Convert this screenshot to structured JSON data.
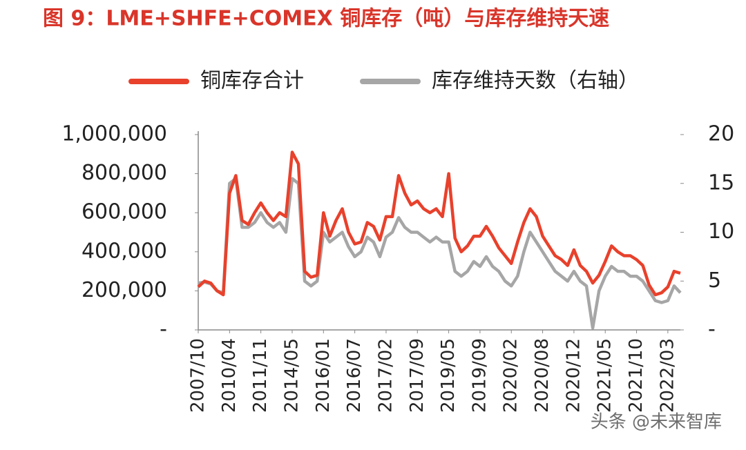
{
  "chart_data": {
    "type": "line",
    "title": "图 9：LME+SHFE+COMEX 铜库存（吨）与库存维持天速",
    "watermark": "头条 @未来智库",
    "categories": [
      "2007/10",
      null,
      null,
      null,
      null,
      "2010/04",
      null,
      null,
      null,
      null,
      "2011/11",
      null,
      null,
      null,
      null,
      "2014/05",
      null,
      null,
      null,
      null,
      "2016/01",
      null,
      null,
      null,
      null,
      "2016/07",
      null,
      null,
      null,
      null,
      "2017/02",
      null,
      null,
      null,
      null,
      "2017/09",
      null,
      null,
      null,
      null,
      "2019/05",
      null,
      null,
      null,
      null,
      "2019/09",
      null,
      null,
      null,
      null,
      "2020/02",
      null,
      null,
      null,
      null,
      "2020/08",
      null,
      null,
      null,
      null,
      "2020/12",
      null,
      null,
      null,
      null,
      "2021/05",
      null,
      null,
      null,
      null,
      "2021/10",
      null,
      null,
      null,
      null,
      "2022/03",
      null,
      null
    ],
    "series": [
      {
        "name": "铜库存合计",
        "color": "#e8412c",
        "values": [
          220000,
          250000,
          240000,
          200000,
          180000,
          700000,
          790000,
          560000,
          540000,
          600000,
          650000,
          600000,
          560000,
          600000,
          580000,
          910000,
          850000,
          300000,
          270000,
          280000,
          600000,
          480000,
          560000,
          620000,
          500000,
          440000,
          450000,
          550000,
          530000,
          460000,
          580000,
          580000,
          790000,
          700000,
          640000,
          660000,
          620000,
          600000,
          620000,
          580000,
          800000,
          470000,
          400000,
          430000,
          480000,
          480000,
          530000,
          480000,
          420000,
          380000,
          340000,
          450000,
          550000,
          620000,
          580000,
          480000,
          430000,
          380000,
          360000,
          330000,
          410000,
          330000,
          300000,
          240000,
          280000,
          350000,
          430000,
          400000,
          380000,
          380000,
          360000,
          330000,
          230000,
          180000,
          190000,
          220000,
          300000,
          290000
        ]
      },
      {
        "name": "库存维持天数（右轴）",
        "color": "#a6a6a6",
        "axis": "y2",
        "values": [
          4.8,
          4.9,
          4.7,
          4.0,
          3.8,
          15.0,
          15.5,
          10.5,
          10.5,
          11,
          12,
          11,
          10.5,
          11,
          10,
          15.5,
          15.0,
          5,
          4.5,
          5,
          10,
          9,
          9.5,
          10,
          8.5,
          7.5,
          8,
          9.5,
          9,
          7.5,
          9.5,
          10,
          11.5,
          10.5,
          10,
          10,
          9.5,
          9,
          9.5,
          9,
          9,
          6,
          5.5,
          6,
          7,
          6.5,
          7.5,
          6.5,
          6,
          5,
          4.5,
          5.5,
          8,
          10,
          9,
          8,
          7,
          6,
          5.5,
          5,
          6,
          5,
          4.5,
          0.2,
          4,
          5.5,
          6.5,
          6,
          6,
          5.5,
          5.5,
          5,
          4,
          3,
          2.8,
          3,
          4.5,
          3.8
        ]
      }
    ],
    "ylim": [
      0,
      1000000
    ],
    "yticks": [
      {
        "value": 0,
        "label": "-"
      },
      {
        "value": 200000,
        "label": "200,000"
      },
      {
        "value": 400000,
        "label": "400,000"
      },
      {
        "value": 600000,
        "label": "600,000"
      },
      {
        "value": 800000,
        "label": "800,000"
      },
      {
        "value": 1000000,
        "label": "1,000,000"
      }
    ],
    "y2lim": [
      0,
      20
    ],
    "y2ticks": [
      {
        "value": 0,
        "label": "-"
      },
      5,
      10,
      15,
      20
    ],
    "legend": "top"
  }
}
